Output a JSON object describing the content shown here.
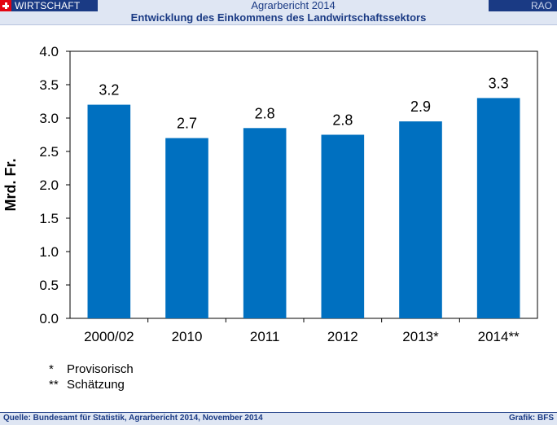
{
  "header": {
    "section": "WIRTSCHAFT",
    "report_title": "Agrarbericht 2014",
    "code": "RAO",
    "subtitle": "Entwicklung des Einkommens des Landwirtschaftssektors",
    "accent_color": "#1a3a84",
    "flag_color": "#e30613"
  },
  "chart_data": {
    "type": "bar",
    "categories": [
      "2000/02",
      "2010",
      "2011",
      "2012",
      "2013*",
      "2014**"
    ],
    "values": [
      3.2,
      2.7,
      2.85,
      2.75,
      2.95,
      3.3
    ],
    "data_labels": [
      "3.2",
      "2.7",
      "2.8",
      "2.8",
      "2.9",
      "3.3"
    ],
    "ylabel": "Mrd. Fr.",
    "xlabel": "",
    "ylim": [
      0,
      4
    ],
    "yticks": [
      "0.0",
      "0.5",
      "1.0",
      "1.5",
      "2.0",
      "2.5",
      "3.0",
      "3.5",
      "4.0"
    ],
    "grid": false,
    "bar_color": "#0070c0"
  },
  "footnotes": [
    {
      "mark": "*",
      "text": "Provisorisch"
    },
    {
      "mark": "**",
      "text": "Schätzung"
    }
  ],
  "footer": {
    "source": "Quelle: Bundesamt für Statistik, Agrarbericht 2014, November 2014",
    "credit": "Grafik: BFS"
  }
}
